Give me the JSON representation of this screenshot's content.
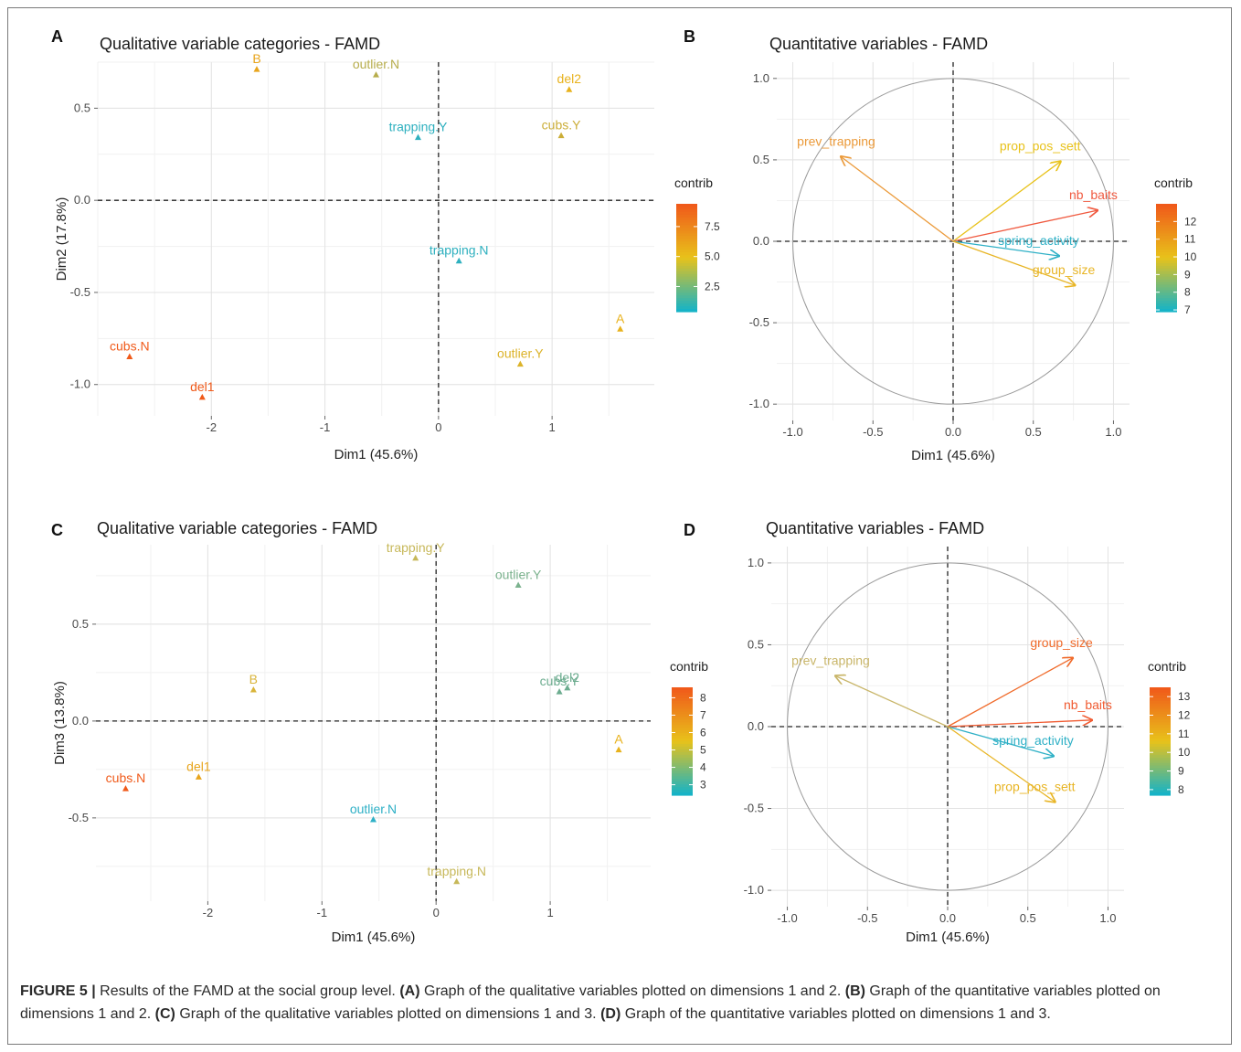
{
  "caption": {
    "label": "FIGURE 5 |",
    "p1": " Results of the FAMD at the social group level. ",
    "a": "(A)",
    "p2": " Graph of the qualitative variables plotted on dimensions 1 and 2. ",
    "b": "(B)",
    "p3": " Graph of the quantitative variables plotted on dimensions 1 and 2. ",
    "c": "(C)",
    "p4": " Graph of the qualitative variables plotted on dimensions 1 and 3. ",
    "d": "(D)",
    "p5": " Graph of the quantitative variables plotted on dimensions 1 and 3."
  },
  "chart_data": [
    {
      "panel": "A",
      "type": "scatter",
      "title": "Qualitative variable categories - FAMD",
      "xlabel": "Dim1 (45.6%)",
      "ylabel": "Dim2 (17.8%)",
      "xlim": [
        -3.0,
        1.9
      ],
      "ylim": [
        -1.17,
        0.75
      ],
      "xticks": [
        -2,
        -1,
        0,
        1
      ],
      "xtick_labels": [
        "-2",
        "-1",
        "0",
        "1"
      ],
      "yticks": [
        -1.0,
        -0.5,
        0.0,
        0.5
      ],
      "ytick_labels": [
        "-1.0",
        "-0.5",
        "0.0",
        "0.5"
      ],
      "grid": true,
      "legend": {
        "title": "contrib",
        "placement": "right",
        "min": 0.4,
        "max": 9.4,
        "colors": [
          "#17b3c6",
          "#e8c21a",
          "#f05a1a"
        ],
        "ticks": [
          2.5,
          5.0,
          7.5
        ],
        "tick_labels": [
          "2.5",
          "5.0",
          "7.5"
        ]
      },
      "points": [
        {
          "label": "B",
          "x": -1.6,
          "y": 0.71,
          "color": "#e8a51d"
        },
        {
          "label": "outlier.N",
          "x": -0.55,
          "y": 0.68,
          "color": "#b7ad4c"
        },
        {
          "label": "del2",
          "x": 1.15,
          "y": 0.6,
          "color": "#e8b21d"
        },
        {
          "label": "trapping.Y",
          "x": -0.18,
          "y": 0.34,
          "color": "#2eb0bf"
        },
        {
          "label": "cubs.Y",
          "x": 1.08,
          "y": 0.35,
          "color": "#cbad37"
        },
        {
          "label": "trapping.N",
          "x": 0.18,
          "y": -0.33,
          "color": "#2eb0bf"
        },
        {
          "label": "A",
          "x": 1.6,
          "y": -0.7,
          "color": "#e8b21d"
        },
        {
          "label": "cubs.N",
          "x": -2.72,
          "y": -0.85,
          "color": "#f05a1a"
        },
        {
          "label": "outlier.Y",
          "x": 0.72,
          "y": -0.89,
          "color": "#dcb32a"
        },
        {
          "label": "del1",
          "x": -2.08,
          "y": -1.07,
          "color": "#f05a1a"
        }
      ]
    },
    {
      "panel": "B",
      "type": "scatter",
      "title": "Quantitative variables - FAMD",
      "xlabel": "Dim1 (45.6%)",
      "ylabel": "",
      "xlim": [
        -1.1,
        1.1
      ],
      "ylim": [
        -1.1,
        1.1
      ],
      "xticks": [
        -1.0,
        -0.5,
        0.0,
        0.5,
        1.0
      ],
      "xtick_labels": [
        "-1.0",
        "-0.5",
        "0.0",
        "0.5",
        "1.0"
      ],
      "yticks": [
        -1.0,
        -0.5,
        0.0,
        0.5,
        1.0
      ],
      "ytick_labels": [
        "-1.0",
        "-0.5",
        "0.0",
        "0.5",
        "1.0"
      ],
      "grid": true,
      "circle": true,
      "legend": {
        "title": "contrib",
        "placement": "right",
        "min": 6.9,
        "max": 13.0,
        "colors": [
          "#17b3c6",
          "#e8c21a",
          "#f05a1a"
        ],
        "ticks": [
          7,
          8,
          9,
          10,
          11,
          12
        ],
        "tick_labels": [
          "7",
          "8",
          "9",
          "10",
          "11",
          "12"
        ]
      },
      "arrows": [
        {
          "label": "prev_trapping",
          "x": -0.7,
          "y": 0.52,
          "color": "#eb9a3a"
        },
        {
          "label": "prop_pos_sett",
          "x": 0.67,
          "y": 0.49,
          "color": "#e8c21a"
        },
        {
          "label": "nb_baits",
          "x": 0.9,
          "y": 0.19,
          "color": "#f05a40"
        },
        {
          "label": "spring_activity",
          "x": 0.66,
          "y": -0.09,
          "color": "#2eb0c6"
        },
        {
          "label": "group_size",
          "x": 0.76,
          "y": -0.27,
          "color": "#e8b525"
        }
      ]
    },
    {
      "panel": "C",
      "type": "scatter",
      "title": "Qualitative variable categories - FAMD",
      "xlabel": "Dim1 (45.6%)",
      "ylabel": "Dim3 (13.8%)",
      "xlim": [
        -2.98,
        1.88
      ],
      "ylim": [
        -0.93,
        0.91
      ],
      "xticks": [
        -2,
        -1,
        0,
        1
      ],
      "xtick_labels": [
        "-2",
        "-1",
        "0",
        "1"
      ],
      "yticks": [
        -0.5,
        0.0,
        0.5
      ],
      "ytick_labels": [
        "-0.5",
        "0.0",
        "0.5"
      ],
      "grid": true,
      "legend": {
        "title": "contrib",
        "placement": "right",
        "min": 2.4,
        "max": 8.6,
        "colors": [
          "#17b3c6",
          "#e8c21a",
          "#f05a1a"
        ],
        "ticks": [
          3,
          4,
          5,
          6,
          7,
          8
        ],
        "tick_labels": [
          "3",
          "4",
          "5",
          "6",
          "7",
          "8"
        ]
      },
      "points": [
        {
          "label": "trapping.Y",
          "x": -0.18,
          "y": 0.84,
          "color": "#c7b85a"
        },
        {
          "label": "outlier.Y",
          "x": 0.72,
          "y": 0.7,
          "color": "#7bb28e"
        },
        {
          "label": "B",
          "x": -1.6,
          "y": 0.16,
          "color": "#d9b43a"
        },
        {
          "label": "cubs.Y",
          "x": 1.08,
          "y": 0.15,
          "color": "#6cac8f"
        },
        {
          "label": "del2",
          "x": 1.15,
          "y": 0.17,
          "color": "#6cac8f"
        },
        {
          "label": "A",
          "x": 1.6,
          "y": -0.15,
          "color": "#e8b21d"
        },
        {
          "label": "del1",
          "x": -2.08,
          "y": -0.29,
          "color": "#e8a51d"
        },
        {
          "label": "cubs.N",
          "x": -2.72,
          "y": -0.35,
          "color": "#f05a1a"
        },
        {
          "label": "outlier.N",
          "x": -0.55,
          "y": -0.51,
          "color": "#2eb0c6"
        },
        {
          "label": "trapping.N",
          "x": 0.18,
          "y": -0.83,
          "color": "#c7b85a"
        }
      ]
    },
    {
      "panel": "D",
      "type": "scatter",
      "title": "Quantitative variables - FAMD",
      "xlabel": "Dim1 (45.6%)",
      "ylabel": "",
      "xlim": [
        -1.1,
        1.1
      ],
      "ylim": [
        -1.1,
        1.1
      ],
      "xticks": [
        -1.0,
        -0.5,
        0.0,
        0.5,
        1.0
      ],
      "xtick_labels": [
        "-1.0",
        "-0.5",
        "0.0",
        "0.5",
        "1.0"
      ],
      "yticks": [
        -1.0,
        -0.5,
        0.0,
        0.5,
        1.0
      ],
      "ytick_labels": [
        "-1.0",
        "-0.5",
        "0.0",
        "0.5",
        "1.0"
      ],
      "grid": true,
      "circle": true,
      "legend": {
        "title": "contrib",
        "placement": "right",
        "min": 7.7,
        "max": 13.5,
        "colors": [
          "#17b3c6",
          "#e8c21a",
          "#f05a1a"
        ],
        "ticks": [
          8,
          9,
          10,
          11,
          12,
          13
        ],
        "tick_labels": [
          "8",
          "9",
          "10",
          "11",
          "12",
          "13"
        ]
      },
      "arrows": [
        {
          "label": "prev_trapping",
          "x": -0.7,
          "y": 0.31,
          "color": "#c9b66a"
        },
        {
          "label": "group_size",
          "x": 0.78,
          "y": 0.42,
          "color": "#f06a2a"
        },
        {
          "label": "nb_baits",
          "x": 0.9,
          "y": 0.04,
          "color": "#f05a30"
        },
        {
          "label": "spring_activity",
          "x": 0.66,
          "y": -0.18,
          "color": "#2eb0c6"
        },
        {
          "label": "prop_pos_sett",
          "x": 0.67,
          "y": -0.46,
          "color": "#e8b525"
        }
      ]
    }
  ]
}
